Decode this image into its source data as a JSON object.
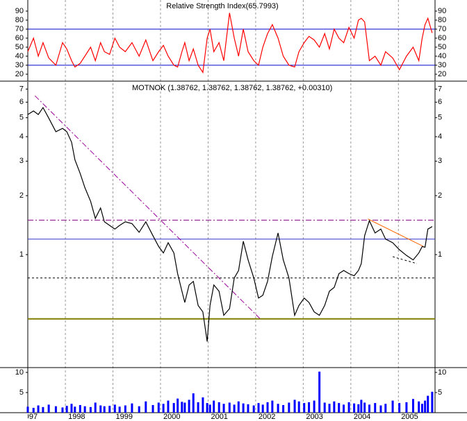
{
  "chart_data": {
    "type": "stock",
    "x": [
      1997.21,
      1997.33,
      1997.43,
      1997.53,
      1997.65,
      1997.8,
      1997.94,
      1998.03,
      1998.13,
      1998.2,
      1998.31,
      1998.41,
      1998.53,
      1998.63,
      1998.74,
      1998.82,
      1998.93,
      1999.04,
      1999.14,
      1999.26,
      1999.4,
      1999.55,
      1999.69,
      1999.84,
      1999.96,
      2000.06,
      2000.16,
      2000.28,
      2000.36,
      2000.45,
      2000.51,
      2000.6,
      2000.69,
      2000.79,
      2000.89,
      2000.98,
      2001.04,
      2001.12,
      2001.23,
      2001.33,
      2001.45,
      2001.55,
      2001.64,
      2001.74,
      2001.84,
      2001.96,
      2002.06,
      2002.15,
      2002.25,
      2002.35,
      2002.47,
      2002.58,
      2002.7,
      2002.82,
      2002.91,
      2003.02,
      2003.12,
      2003.23,
      2003.34,
      2003.45,
      2003.55,
      2003.65,
      2003.75,
      2003.85,
      2003.96,
      2004.07,
      2004.16,
      2004.22,
      2004.29,
      2004.39,
      2004.51,
      2004.63,
      2004.73,
      2004.88,
      2005.02,
      2005.17,
      2005.31,
      2005.43,
      2005.5,
      2005.56,
      2005.62,
      2005.71
    ],
    "xlim": [
      1997.21,
      2005.77
    ],
    "xticks": [
      {
        "value": 1997,
        "label": "1997"
      },
      {
        "value": 1998,
        "label": "1998"
      },
      {
        "value": 1999,
        "label": "1999"
      },
      {
        "value": 2000,
        "label": "2000"
      },
      {
        "value": 2001,
        "label": "2001"
      },
      {
        "value": 2002,
        "label": "2002"
      },
      {
        "value": 2003,
        "label": "2003"
      },
      {
        "value": 2004,
        "label": "2004"
      },
      {
        "value": 2005,
        "label": "2005"
      }
    ],
    "grid": true,
    "panels": [
      {
        "type": "line",
        "title": "Relative Strength Index(65.7993)",
        "color": "#ff0000",
        "values": [
          45,
          60,
          40,
          55,
          38,
          30,
          55,
          48,
          35,
          28,
          32,
          40,
          50,
          35,
          55,
          45,
          42,
          60,
          50,
          45,
          55,
          40,
          58,
          35,
          45,
          52,
          40,
          30,
          28,
          45,
          55,
          35,
          48,
          30,
          22,
          60,
          70,
          45,
          55,
          35,
          88,
          60,
          40,
          70,
          45,
          35,
          30,
          50,
          65,
          75,
          60,
          40,
          30,
          28,
          45,
          55,
          62,
          58,
          50,
          65,
          48,
          70,
          60,
          55,
          72,
          60,
          80,
          82,
          78,
          35,
          40,
          30,
          45,
          38,
          25,
          40,
          50,
          35,
          60,
          75,
          82,
          65.8
        ],
        "ylim": [
          12.3,
          102.3
        ],
        "yticks": [
          20,
          30,
          40,
          50,
          60,
          70,
          80,
          90
        ],
        "hlines": [
          {
            "value": 70,
            "color": "#0000cc"
          },
          {
            "value": 30,
            "color": "#0000cc"
          }
        ]
      },
      {
        "type": "line",
        "title": "MOTNOK (1.38762, 1.38762, 1.38762, 1.38762, +0.00310)",
        "color": "#000000",
        "log": true,
        "values": [
          5.19,
          5.41,
          5.19,
          5.63,
          4.98,
          4.24,
          4.41,
          4.24,
          3.75,
          3.05,
          2.6,
          2.2,
          1.87,
          1.53,
          1.73,
          1.47,
          1.41,
          1.35,
          1.41,
          1.47,
          1.44,
          1.3,
          1.47,
          1.25,
          1.1,
          1.02,
          1.15,
          1.02,
          0.8,
          0.65,
          0.57,
          0.7,
          0.73,
          0.55,
          0.51,
          0.36,
          0.55,
          0.7,
          0.65,
          0.49,
          0.53,
          0.76,
          0.83,
          1.17,
          0.94,
          0.76,
          0.6,
          0.62,
          0.73,
          0.98,
          1.29,
          0.94,
          0.76,
          0.49,
          0.55,
          0.6,
          0.57,
          0.51,
          0.49,
          0.55,
          0.65,
          0.68,
          0.8,
          0.83,
          0.8,
          0.78,
          0.83,
          0.9,
          1.25,
          1.49,
          1.29,
          1.35,
          1.2,
          1.15,
          1.06,
          0.99,
          0.94,
          1.02,
          1.1,
          1.09,
          1.35,
          1.39
        ],
        "ylim": [
          0.265,
          7.62
        ],
        "yticks": [
          1,
          2,
          3,
          4,
          5,
          6,
          7
        ],
        "hlines": [
          {
            "value": 1.5,
            "color": "#800080",
            "dash": "dashdot"
          },
          {
            "value": 1.2,
            "color": "#3333cc",
            "dash": "solid"
          },
          {
            "value": 0.76,
            "color": "#000000",
            "dash": "dashed"
          },
          {
            "value": 0.47,
            "color": "#808000",
            "dash": "thick"
          }
        ],
        "trendlines": [
          {
            "x": [
              1997.36,
              2002.1
            ],
            "values": [
              6.47,
              0.469
            ],
            "color": "#990099",
            "dash": "dashdot"
          },
          {
            "x": [
              2004.36,
              2005.53
            ],
            "values": [
              1.52,
              1.1
            ],
            "color": "#ff6600",
            "dash": "solid"
          },
          {
            "x": [
              2004.88,
              2005.39
            ],
            "values": [
              0.976,
              0.9
            ],
            "color": "#000000",
            "dash": "dashed"
          }
        ]
      },
      {
        "type": "bar",
        "color": "#0000ff",
        "values": [
          1.5,
          1.2,
          1.8,
          1.4,
          2.0,
          1.6,
          1.3,
          1.7,
          2.2,
          1.5,
          1.9,
          1.6,
          1.4,
          2.5,
          1.8,
          1.6,
          1.7,
          2.0,
          1.5,
          1.8,
          2.3,
          1.6,
          2.8,
          1.9,
          2.5,
          2.2,
          3.0,
          2.4,
          3.5,
          2.7,
          2.5,
          3.2,
          4.8,
          2.6,
          3.8,
          2.4,
          2.0,
          3.0,
          2.6,
          2.2,
          2.5,
          2.0,
          2.8,
          2.3,
          2.1,
          1.8,
          2.4,
          2.0,
          2.6,
          3.0,
          2.2,
          1.9,
          2.5,
          3.2,
          2.8,
          2.4,
          2.6,
          3.0,
          10.2,
          2.5,
          2.2,
          2.8,
          2.4,
          2.0,
          2.6,
          2.3,
          2.1,
          3.2,
          2.5,
          2.0,
          2.4,
          1.8,
          2.2,
          3.0,
          2.4,
          2.6,
          3.4,
          2.8,
          2.2,
          3.0,
          4.2,
          5.2
        ],
        "ylim": [
          0,
          11.2
        ],
        "yticks": [
          5,
          10
        ]
      }
    ]
  }
}
